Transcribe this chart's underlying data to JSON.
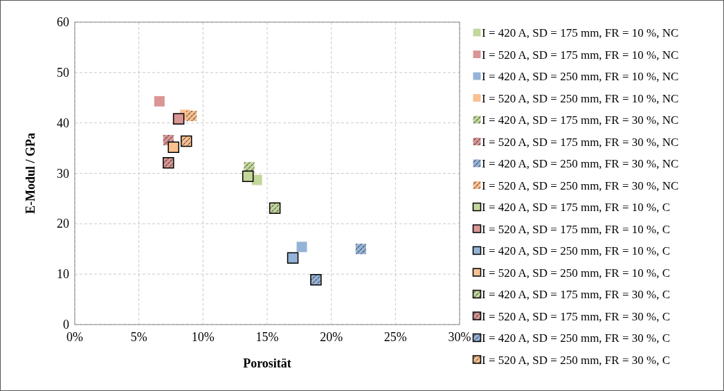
{
  "chart_data": {
    "type": "scatter",
    "xlabel": "Porosität",
    "ylabel": "E-Modul / GPa",
    "xlim": [
      0,
      30
    ],
    "xticks": [
      {
        "value": 0,
        "label": "0%"
      },
      {
        "value": 5,
        "label": "5%"
      },
      {
        "value": 10,
        "label": "10%"
      },
      {
        "value": 15,
        "label": "15%"
      },
      {
        "value": 20,
        "label": "20%"
      },
      {
        "value": 25,
        "label": "25%"
      },
      {
        "value": 30,
        "label": "30%"
      }
    ],
    "ylim": [
      0,
      60
    ],
    "yticks": [
      0,
      10,
      20,
      30,
      40,
      50,
      60
    ],
    "grid": true,
    "legend": "right",
    "marker": "square",
    "series": [
      {
        "name": "I = 420 A, SD = 175 mm, FR = 10 %, NC",
        "color": "#c3d69b",
        "x": [
          14.2
        ],
        "values": [
          28.7
        ]
      },
      {
        "name": "I = 520 A, SD = 175 mm, FR = 10 %, NC",
        "color": "#d99694",
        "x": [
          6.6
        ],
        "values": [
          44.3
        ]
      },
      {
        "name": "I = 420 A, SD = 250 mm, FR = 10 %, NC",
        "color": "#95b3d7",
        "x": [
          17.7
        ],
        "values": [
          15.4
        ]
      },
      {
        "name": "I = 520 A, SD = 250 mm, FR = 10 %, NC",
        "color": "#fac090",
        "x": [
          8.6
        ],
        "values": [
          41.6
        ]
      },
      {
        "name": "I = 420 A, SD = 175 mm, FR = 30 %, NC",
        "color": "#c3d69b",
        "x": [
          13.6
        ],
        "values": [
          31.2
        ]
      },
      {
        "name": "I = 520 A, SD = 175 mm, FR = 30 %, NC",
        "color": "#d99694",
        "x": [
          7.3
        ],
        "values": [
          36.6
        ]
      },
      {
        "name": "I = 420 A, SD = 250 mm, FR = 30 %, NC",
        "color": "#95b3d7",
        "x": [
          22.3
        ],
        "values": [
          15.0
        ]
      },
      {
        "name": "I = 520 A, SD = 250 mm, FR = 30 %, NC",
        "color": "#fac090",
        "x": [
          9.1
        ],
        "values": [
          41.4
        ]
      },
      {
        "name": "I = 420 A, SD = 175 mm, FR = 10 %, C",
        "color": "#c3d69b",
        "x": [
          13.5
        ],
        "values": [
          29.4
        ]
      },
      {
        "name": "I = 520 A, SD = 175 mm, FR = 10 %, C",
        "color": "#d99694",
        "x": [
          8.1
        ],
        "values": [
          40.8
        ]
      },
      {
        "name": "I = 420 A, SD = 250 mm, FR = 10 %, C",
        "color": "#95b3d7",
        "x": [
          17.0
        ],
        "values": [
          13.2
        ]
      },
      {
        "name": "I = 520 A, SD = 250 mm, FR = 10 %, C",
        "color": "#fac090",
        "x": [
          7.7
        ],
        "values": [
          35.2
        ]
      },
      {
        "name": "I = 420 A, SD = 175 mm, FR = 30 %, C",
        "color": "#c3d69b",
        "x": [
          15.6
        ],
        "values": [
          23.1
        ]
      },
      {
        "name": "I = 520 A, SD = 175 mm, FR = 30 %, C",
        "color": "#d99694",
        "x": [
          7.3
        ],
        "values": [
          32.1
        ]
      },
      {
        "name": "I = 420 A, SD = 250 mm, FR = 30 %, C",
        "color": "#95b3d7",
        "x": [
          18.8
        ],
        "values": [
          8.9
        ]
      },
      {
        "name": "I = 520 A, SD = 250 mm, FR = 30 %, C",
        "color": "#fac090",
        "x": [
          8.7
        ],
        "values": [
          36.4
        ]
      }
    ]
  }
}
